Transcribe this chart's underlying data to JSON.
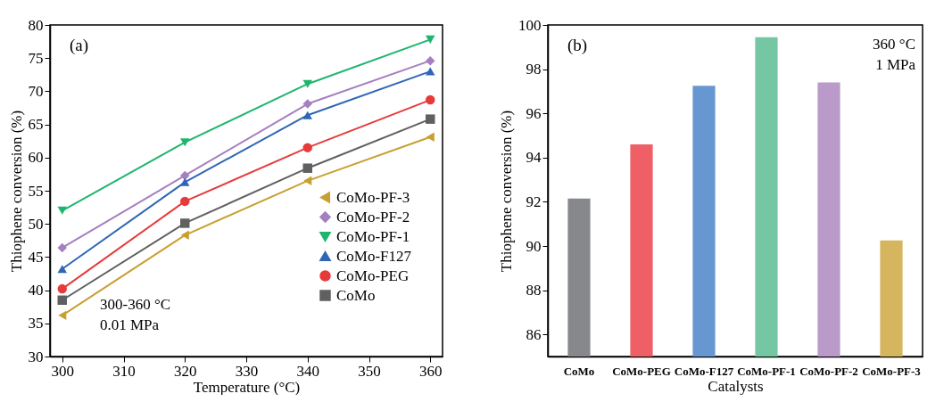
{
  "chart_data": [
    {
      "type": "line",
      "title": "(a)",
      "xlabel": "Temperature (°C)",
      "ylabel": "Thiophene conversion (%)",
      "x": [
        300,
        320,
        340,
        360
      ],
      "series": [
        {
          "name": "CoMo-PF-3",
          "color": "#c8a032",
          "marker": "triangle-left",
          "values": [
            36.2,
            48.3,
            56.5,
            63.1
          ]
        },
        {
          "name": "CoMo-PF-2",
          "color": "#a57fc0",
          "marker": "diamond",
          "values": [
            46.4,
            57.3,
            68.1,
            74.6
          ]
        },
        {
          "name": "CoMo-PF-1",
          "color": "#1fb56e",
          "marker": "triangle-down",
          "values": [
            52.0,
            62.3,
            71.1,
            77.8
          ]
        },
        {
          "name": "CoMo-F127",
          "color": "#2f66b5",
          "marker": "triangle-up",
          "values": [
            43.2,
            56.3,
            66.4,
            73.0
          ]
        },
        {
          "name": "CoMo-PEG",
          "color": "#e63b3b",
          "marker": "circle",
          "values": [
            40.2,
            53.4,
            61.5,
            68.7
          ]
        },
        {
          "name": "CoMo",
          "color": "#606060",
          "marker": "square",
          "values": [
            38.5,
            50.1,
            58.4,
            65.8
          ]
        }
      ],
      "xlim": [
        298,
        362
      ],
      "xticks": [
        300,
        310,
        320,
        330,
        340,
        350,
        360
      ],
      "ylim": [
        30,
        80
      ],
      "yticks": [
        30,
        35,
        40,
        45,
        50,
        55,
        60,
        65,
        70,
        75,
        80
      ],
      "legend": "right",
      "grid": false,
      "annotations": [
        "300-360 °C",
        "0.01 MPa"
      ]
    },
    {
      "type": "bar",
      "title": "(b)",
      "xlabel": "Catalysts",
      "ylabel": "Thiophene conversion (%)",
      "categories": [
        "CoMo",
        "CoMo-PEG",
        "CoMo-F127",
        "CoMo-PF-1",
        "CoMo-PF-2",
        "CoMo-PF-3"
      ],
      "values": [
        92.15,
        94.6,
        97.25,
        99.45,
        97.4,
        90.25
      ],
      "colors": [
        "#86888c",
        "#ee5f66",
        "#6797d0",
        "#75c7a4",
        "#b99ac9",
        "#d5b55e"
      ],
      "ylim": [
        85,
        100
      ],
      "yticks": [
        86,
        88,
        90,
        92,
        94,
        96,
        98,
        100
      ],
      "legend": false,
      "grid": false,
      "annotations": [
        "360 °C",
        "1 MPa"
      ]
    }
  ]
}
